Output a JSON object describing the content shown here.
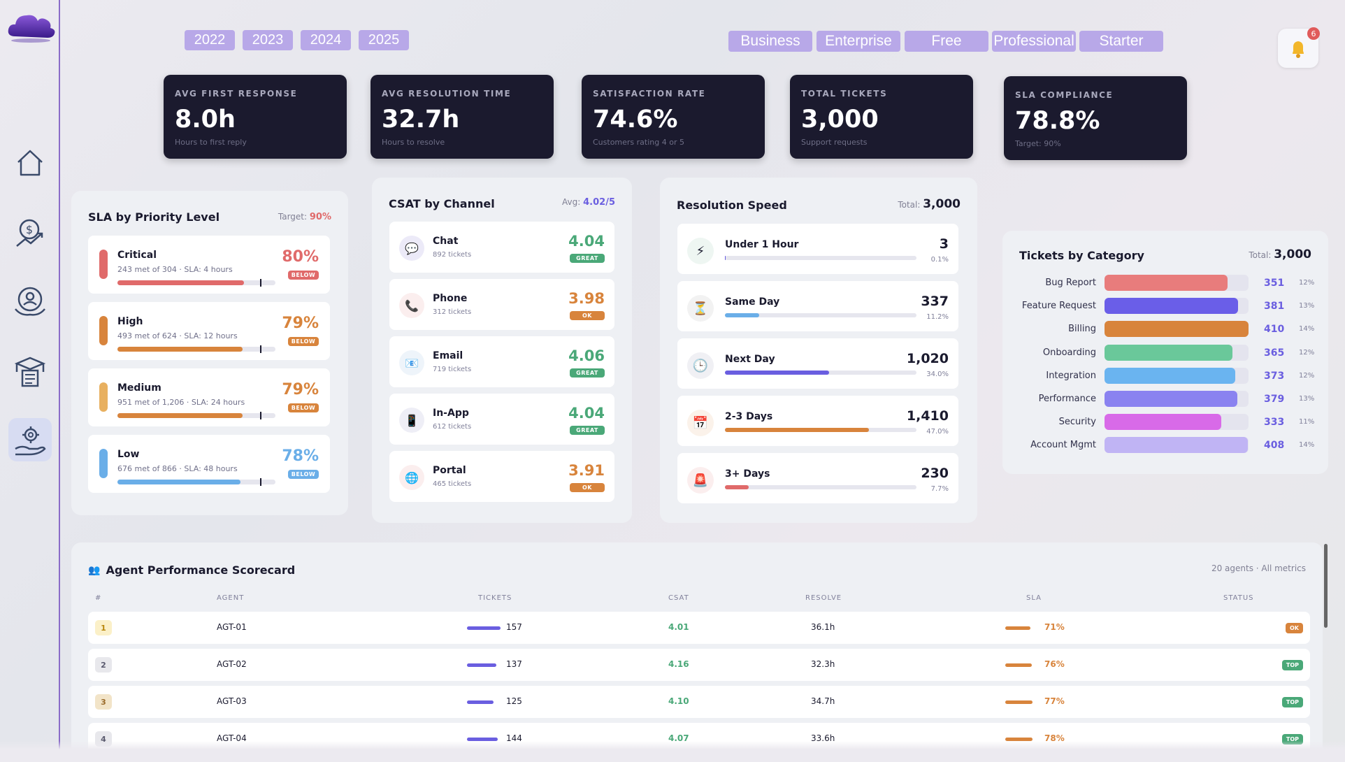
{
  "years": [
    "2022",
    "2023",
    "2024",
    "2025"
  ],
  "tiers": [
    "Business",
    "Enterprise",
    "Free",
    "Professional",
    "Starter"
  ],
  "notifications": {
    "count": "6"
  },
  "kpis": [
    {
      "label": "AVG FIRST RESPONSE",
      "value": "8.0h",
      "sub": "Hours to first reply"
    },
    {
      "label": "AVG RESOLUTION TIME",
      "value": "32.7h",
      "sub": "Hours to resolve"
    },
    {
      "label": "SATISFACTION RATE",
      "value": "74.6%",
      "sub": "Customers rating 4 or 5"
    },
    {
      "label": "TOTAL TICKETS",
      "value": "3,000",
      "sub": "Support requests"
    },
    {
      "label": "SLA COMPLIANCE",
      "value": "78.8%",
      "sub": "Target: 90%"
    }
  ],
  "sla": {
    "title": "SLA by Priority Level",
    "target_label": "Target:",
    "target_value": "90%",
    "rows": [
      {
        "name": "Critical",
        "sub": "243 met of 304 · SLA: 4 hours",
        "pct": "80%",
        "badge": "BELOW",
        "level": 0.8,
        "color": "#e06a6a",
        "badge_color": "#e06a6a"
      },
      {
        "name": "High",
        "sub": "493 met of 624 · SLA: 12 hours",
        "pct": "79%",
        "badge": "BELOW",
        "level": 0.79,
        "color": "#d8843c",
        "badge_color": "#d8843c"
      },
      {
        "name": "Medium",
        "sub": "951 met of 1,206 · SLA: 24 hours",
        "pct": "79%",
        "badge": "BELOW",
        "level": 0.79,
        "color": "#d8843c",
        "badge_color": "#d8843c",
        "accent": "#e8b060"
      },
      {
        "name": "Low",
        "sub": "676 met of 866 · SLA: 48 hours",
        "pct": "78%",
        "badge": "BELOW",
        "level": 0.78,
        "color": "#6aaee8",
        "badge_color": "#6aaee8"
      }
    ]
  },
  "csat": {
    "title": "CSAT by Channel",
    "avg_label": "Avg:",
    "avg_value": "4.02/5",
    "rows": [
      {
        "name": "Chat",
        "sub": "892 tickets",
        "score": "4.04",
        "badge": "GREAT",
        "color": "#4aa878",
        "icon": "💬",
        "icon_bg": "#eceaf8"
      },
      {
        "name": "Phone",
        "sub": "312 tickets",
        "score": "3.98",
        "badge": "OK",
        "color": "#d8843c",
        "icon": "📞",
        "icon_bg": "#fbeeee"
      },
      {
        "name": "Email",
        "sub": "719 tickets",
        "score": "4.06",
        "badge": "GREAT",
        "color": "#4aa878",
        "icon": "📧",
        "icon_bg": "#eef4fa"
      },
      {
        "name": "In-App",
        "sub": "612 tickets",
        "score": "4.04",
        "badge": "GREAT",
        "color": "#4aa878",
        "icon": "📱",
        "icon_bg": "#eeeef6"
      },
      {
        "name": "Portal",
        "sub": "465 tickets",
        "score": "3.91",
        "badge": "OK",
        "color": "#d8843c",
        "icon": "🌐",
        "icon_bg": "#fbeeee"
      }
    ]
  },
  "resolution": {
    "title": "Resolution Speed",
    "total_label": "Total:",
    "total_value": "3,000",
    "rows": [
      {
        "name": "Under 1 Hour",
        "value": "3",
        "pct": "0.1%",
        "level": 0.001,
        "color": "#6a5ee0",
        "icon": "⚡",
        "icon_bg": "#eef6f2"
      },
      {
        "name": "Same Day",
        "value": "337",
        "pct": "11.2%",
        "level": 0.112,
        "color": "#6aaee8",
        "icon": "⏳",
        "icon_bg": "#f2f2f2"
      },
      {
        "name": "Next Day",
        "value": "1,020",
        "pct": "34.0%",
        "level": 0.34,
        "color": "#6a5ee0",
        "icon": "🕒",
        "icon_bg": "#f0f0f4"
      },
      {
        "name": "2-3 Days",
        "value": "1,410",
        "pct": "47.0%",
        "level": 0.47,
        "color": "#d8843c",
        "icon": "📅",
        "icon_bg": "#fbf2ea"
      },
      {
        "name": "3+ Days",
        "value": "230",
        "pct": "7.7%",
        "level": 0.077,
        "color": "#e06a6a",
        "icon": "🚨",
        "icon_bg": "#fbeeee"
      }
    ]
  },
  "category": {
    "title": "Tickets by Category",
    "total_label": "Total:",
    "total_value": "3,000",
    "max": 410,
    "rows": [
      {
        "name": "Bug Report",
        "value": 351,
        "value_label": "351",
        "pct": "12%",
        "color": "#e87c7c"
      },
      {
        "name": "Feature Request",
        "value": 381,
        "value_label": "381",
        "pct": "13%",
        "color": "#6a5ee8"
      },
      {
        "name": "Billing",
        "value": 410,
        "value_label": "410",
        "pct": "14%",
        "color": "#d8843c"
      },
      {
        "name": "Onboarding",
        "value": 365,
        "value_label": "365",
        "pct": "12%",
        "color": "#6ac89a"
      },
      {
        "name": "Integration",
        "value": 373,
        "value_label": "373",
        "pct": "12%",
        "color": "#6ab4f0"
      },
      {
        "name": "Performance",
        "value": 379,
        "value_label": "379",
        "pct": "13%",
        "color": "#8a82f0"
      },
      {
        "name": "Security",
        "value": 333,
        "value_label": "333",
        "pct": "11%",
        "color": "#d86ae8"
      },
      {
        "name": "Account Mgmt",
        "value": 408,
        "value_label": "408",
        "pct": "14%",
        "color": "#c0b4f4"
      }
    ]
  },
  "agents": {
    "title": "Agent Performance Scorecard",
    "meta": "20 agents · All metrics",
    "headers": [
      "#",
      "AGENT",
      "TICKETS",
      "CSAT",
      "RESOLVE",
      "SLA",
      "STATUS"
    ],
    "max_tickets": 157,
    "rows": [
      {
        "rank": "1",
        "agent": "AGT-01",
        "tickets": 157,
        "tickets_label": "157",
        "csat": "4.01",
        "resolve": "36.1h",
        "sla": "71%",
        "sla_level": 0.71,
        "status": "OK",
        "status_color": "#d8843c",
        "rank_bg": "#fbf0c8",
        "rank_color": "#b8860b"
      },
      {
        "rank": "2",
        "agent": "AGT-02",
        "tickets": 137,
        "tickets_label": "137",
        "csat": "4.16",
        "resolve": "32.3h",
        "sla": "76%",
        "sla_level": 0.76,
        "status": "TOP",
        "status_color": "#4aa878",
        "rank_bg": "#e8e8ec",
        "rank_color": "#5a5a6e"
      },
      {
        "rank": "3",
        "agent": "AGT-03",
        "tickets": 125,
        "tickets_label": "125",
        "csat": "4.10",
        "resolve": "34.7h",
        "sla": "77%",
        "sla_level": 0.77,
        "status": "TOP",
        "status_color": "#4aa878",
        "rank_bg": "#f2e4c8",
        "rank_color": "#9a6a2a"
      },
      {
        "rank": "4",
        "agent": "AGT-04",
        "tickets": 144,
        "tickets_label": "144",
        "csat": "4.07",
        "resolve": "33.6h",
        "sla": "78%",
        "sla_level": 0.78,
        "status": "TOP",
        "status_color": "#4aa878",
        "rank_bg": "#e8e8ec",
        "rank_color": "#5a5a6e"
      }
    ]
  },
  "colors": {
    "accent": "#6a5ee0",
    "good": "#4aa878",
    "warn": "#d8843c",
    "bad": "#e06a6a"
  }
}
